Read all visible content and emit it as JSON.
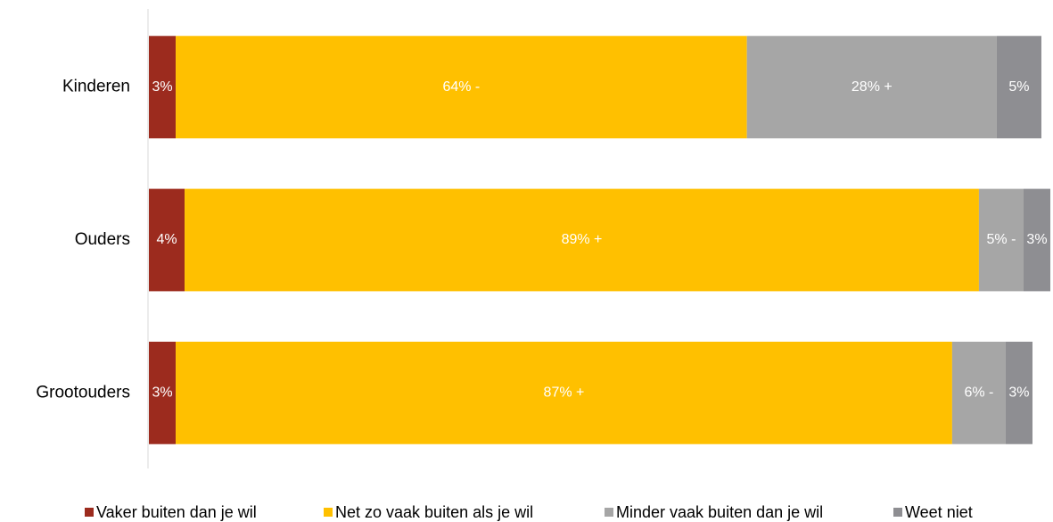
{
  "chart_data": {
    "type": "stacked-barh",
    "categories": [
      "Kinderen",
      "Ouders",
      "Grootouders"
    ],
    "series": [
      {
        "name": "Vaker buiten dan je wil",
        "color": "#9c2b1e",
        "values": [
          3,
          4,
          3
        ],
        "value_labels": [
          "3%",
          "4%",
          "3%"
        ]
      },
      {
        "name": "Net zo vaak buiten als je wil",
        "color": "#ffc000",
        "values": [
          64,
          89,
          87
        ],
        "value_labels": [
          "64% -",
          "89% +",
          "87% +"
        ]
      },
      {
        "name": "Minder vaak buiten dan je wil",
        "color": "#a6a6a6",
        "values": [
          28,
          5,
          6
        ],
        "value_labels": [
          "28% +",
          "5% -",
          "6% -"
        ]
      },
      {
        "name": "Weet niet",
        "color": "#8e8e92",
        "values": [
          5,
          3,
          3
        ],
        "value_labels": [
          "5%",
          "3%",
          "3%"
        ]
      }
    ],
    "xlim": [
      0,
      100
    ],
    "legend": "bottom"
  }
}
